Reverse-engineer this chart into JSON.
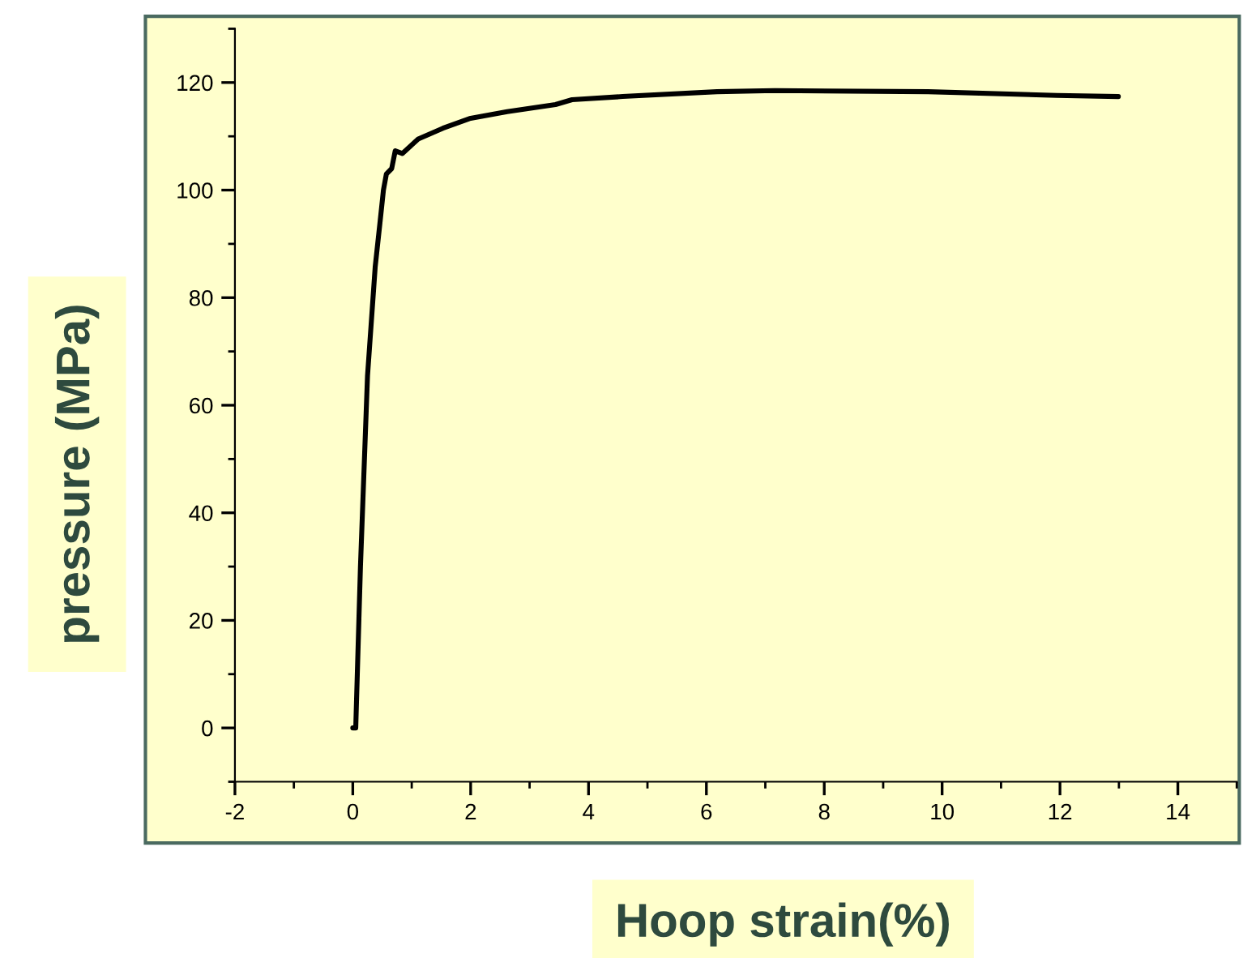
{
  "chart_data": {
    "type": "line",
    "xlabel": "Hoop strain(%)",
    "ylabel": "pressure (MPa)",
    "xlim": [
      -2,
      15
    ],
    "ylim": [
      -10,
      130
    ],
    "xticks": [
      -2,
      0,
      2,
      4,
      6,
      8,
      10,
      12,
      14
    ],
    "yticks": [
      0,
      20,
      40,
      60,
      80,
      100,
      120
    ],
    "grid": false,
    "legend": false,
    "marker": "none",
    "line_style": "solid",
    "series": [
      {
        "color": "#000000",
        "x": [
          0,
          0.05,
          0.13,
          0.25,
          0.38,
          0.46,
          0.52,
          0.57,
          0.66,
          0.72,
          0.84,
          1.11,
          1.53,
          1.98,
          2.62,
          3.44,
          3.72,
          4.58,
          6.18,
          7.16,
          9.76,
          11.95,
          12.99
        ],
        "values": [
          0,
          0,
          30,
          65.5,
          85.7,
          93.8,
          100,
          103,
          104,
          107.3,
          106.8,
          109.5,
          111.5,
          113.3,
          114.6,
          115.9,
          116.8,
          117.4,
          118.3,
          118.5,
          118.3,
          117.6,
          117.4
        ]
      }
    ]
  }
}
